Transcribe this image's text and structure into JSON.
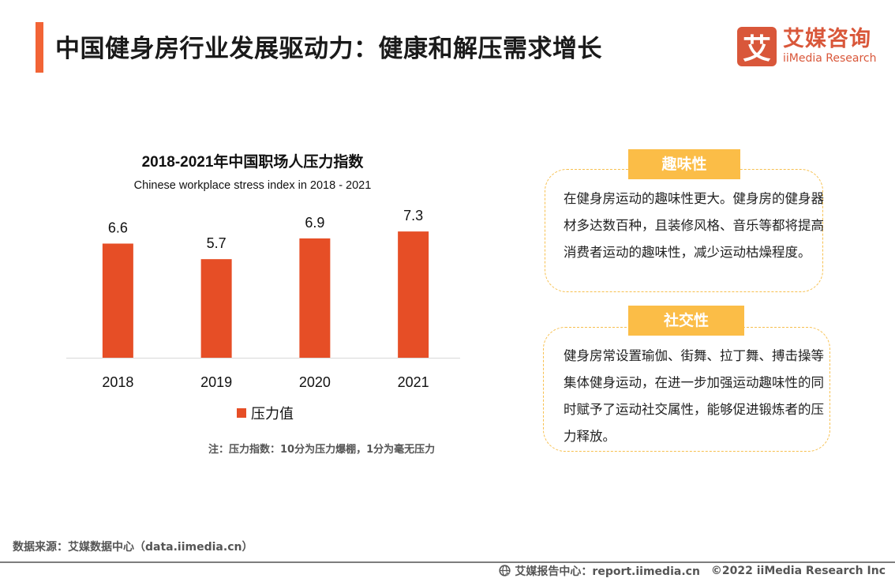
{
  "header": {
    "title": "中国健身房行业发展驱动力：健康和解压需求增长",
    "accent_color": "#f26436"
  },
  "logo": {
    "mark": "艾",
    "cn": "艾媒咨询",
    "en": "iiMedia Research",
    "color": "#d9573a"
  },
  "chart_data": {
    "type": "bar",
    "title": "2018-2021年中国职场人压力指数",
    "subtitle": "Chinese workplace stress index in 2018 - 2021",
    "categories": [
      "2018",
      "2019",
      "2020",
      "2021"
    ],
    "series": [
      {
        "name": "压力值",
        "values": [
          6.6,
          5.7,
          6.9,
          7.3
        ],
        "color": "#e64e26"
      }
    ],
    "data_labels": [
      "6.6",
      "5.7",
      "6.9",
      "7.3"
    ],
    "xlabel": "",
    "ylabel": "",
    "ylim": [
      0,
      8
    ],
    "grid": false,
    "legend_position": "bottom-center",
    "note": "注：压力指数：10分为压力爆棚，1分为毫无压力"
  },
  "cards": [
    {
      "tag": "趣味性",
      "text": "在健身房运动的趣味性更大。健身房的健身器材多达数百种，且装修风格、音乐等都将提高消费者运动的趣味性，减少运动枯燥程度。"
    },
    {
      "tag": "社交性",
      "text": "健身房常设置瑜伽、街舞、拉丁舞、搏击操等集体健身运动，在进一步加强运动趣味性的同时赋予了运动社交属性，能够促进锻炼者的压力释放。"
    }
  ],
  "footer": {
    "source": "数据来源：艾媒数据中心（data.iimedia.cn）",
    "report_center": "艾媒报告中心：report.iimedia.cn",
    "copyright": "©2022  iiMedia Research  Inc",
    "globe_icon": "globe-cursor-icon"
  }
}
